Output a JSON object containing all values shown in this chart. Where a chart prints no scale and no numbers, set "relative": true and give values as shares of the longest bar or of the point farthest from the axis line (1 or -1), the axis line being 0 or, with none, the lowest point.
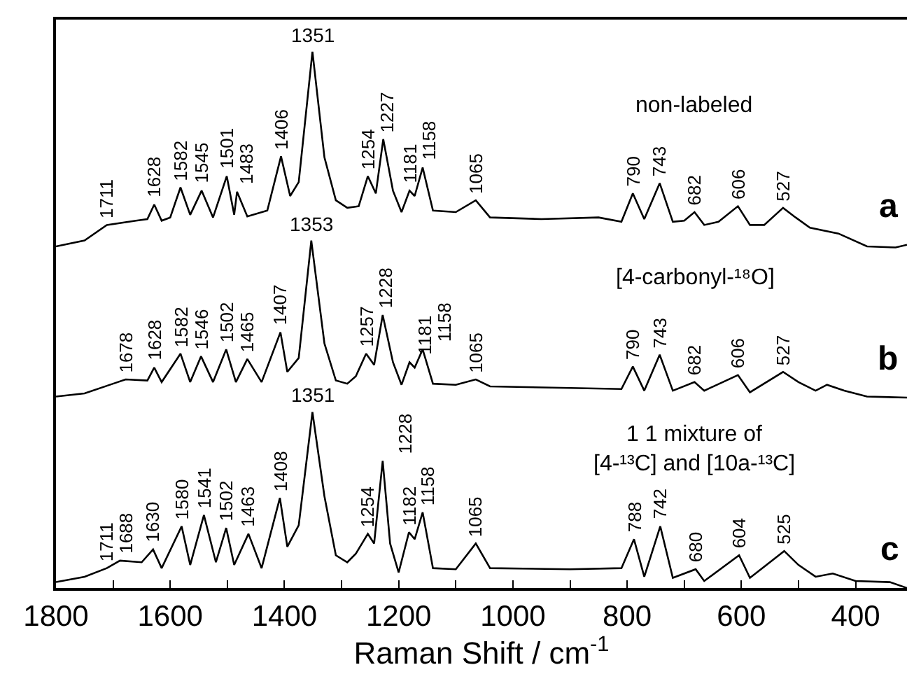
{
  "chart_data": {
    "type": "line",
    "relative": true,
    "xlabel": "Raman Shift / cm$^{-1}$",
    "xlim": [
      1800,
      310
    ],
    "xticks": [
      1800,
      {
        "value": 1700,
        "label": null
      },
      1600,
      {
        "value": 1500,
        "label": null
      },
      1400,
      {
        "value": 1300,
        "label": null
      },
      1200,
      {
        "value": 1100,
        "label": null
      },
      1000,
      {
        "value": 900,
        "label": null
      },
      800,
      {
        "value": 700,
        "label": null
      },
      600,
      {
        "value": 500,
        "label": null
      },
      400
    ],
    "grid": false,
    "legend": false,
    "marker": "none",
    "line_style": "solid",
    "series": [
      {
        "name": "a",
        "color": "#000000",
        "x": [
          1800,
          1750,
          1711,
          1660,
          1640,
          1628,
          1615,
          1600,
          1582,
          1565,
          1545,
          1525,
          1501,
          1488,
          1483,
          1465,
          1430,
          1406,
          1390,
          1375,
          1351,
          1330,
          1310,
          1290,
          1270,
          1254,
          1240,
          1227,
          1210,
          1195,
          1181,
          1172,
          1158,
          1140,
          1100,
          1065,
          1040,
          950,
          850,
          810,
          790,
          770,
          743,
          720,
          700,
          682,
          665,
          640,
          606,
          585,
          560,
          527,
          505,
          480,
          430,
          380,
          330,
          310
        ],
        "values": [
          0.637,
          0.648,
          0.677,
          0.685,
          0.688,
          0.715,
          0.685,
          0.691,
          0.747,
          0.696,
          0.741,
          0.691,
          0.768,
          0.696,
          0.739,
          0.693,
          0.704,
          0.805,
          0.731,
          0.757,
          1.0,
          0.803,
          0.723,
          0.709,
          0.712,
          0.768,
          0.736,
          0.837,
          0.741,
          0.701,
          0.741,
          0.731,
          0.784,
          0.704,
          0.701,
          0.723,
          0.691,
          0.688,
          0.691,
          0.683,
          0.736,
          0.688,
          0.755,
          0.683,
          0.685,
          0.701,
          0.677,
          0.683,
          0.712,
          0.677,
          0.677,
          0.709,
          0.691,
          0.672,
          0.661,
          0.637,
          0.635,
          0.64
        ]
      },
      {
        "name": "b",
        "color": "#000000",
        "x": [
          1800,
          1750,
          1700,
          1678,
          1640,
          1628,
          1615,
          1582,
          1565,
          1546,
          1525,
          1502,
          1485,
          1465,
          1440,
          1407,
          1395,
          1375,
          1353,
          1330,
          1310,
          1290,
          1275,
          1257,
          1243,
          1228,
          1210,
          1195,
          1181,
          1172,
          1158,
          1140,
          1100,
          1065,
          1040,
          900,
          810,
          790,
          770,
          743,
          720,
          682,
          665,
          606,
          585,
          527,
          500,
          470,
          450,
          420,
          380,
          310
        ],
        "values": [
          0.357,
          0.363,
          0.381,
          0.389,
          0.387,
          0.411,
          0.384,
          0.437,
          0.384,
          0.432,
          0.384,
          0.445,
          0.384,
          0.427,
          0.384,
          0.477,
          0.403,
          0.429,
          0.648,
          0.456,
          0.387,
          0.381,
          0.395,
          0.437,
          0.416,
          0.509,
          0.421,
          0.379,
          0.421,
          0.411,
          0.445,
          0.381,
          0.379,
          0.389,
          0.376,
          0.373,
          0.371,
          0.413,
          0.368,
          0.435,
          0.368,
          0.384,
          0.368,
          0.397,
          0.365,
          0.403,
          0.384,
          0.368,
          0.379,
          0.368,
          0.357,
          0.355
        ]
      },
      {
        "name": "c",
        "color": "#000000",
        "x": [
          1800,
          1750,
          1711,
          1688,
          1650,
          1630,
          1615,
          1580,
          1565,
          1541,
          1520,
          1502,
          1488,
          1463,
          1440,
          1408,
          1395,
          1375,
          1351,
          1330,
          1310,
          1290,
          1275,
          1254,
          1243,
          1228,
          1215,
          1200,
          1182,
          1172,
          1158,
          1140,
          1100,
          1065,
          1040,
          900,
          810,
          788,
          770,
          742,
          720,
          680,
          665,
          604,
          585,
          525,
          500,
          470,
          440,
          400,
          340,
          310
        ],
        "values": [
          0.011,
          0.021,
          0.037,
          0.051,
          0.048,
          0.072,
          0.037,
          0.115,
          0.043,
          0.136,
          0.048,
          0.112,
          0.043,
          0.101,
          0.037,
          0.168,
          0.077,
          0.117,
          0.328,
          0.171,
          0.061,
          0.048,
          0.064,
          0.101,
          0.083,
          0.237,
          0.083,
          0.029,
          0.104,
          0.091,
          0.141,
          0.037,
          0.035,
          0.083,
          0.037,
          0.035,
          0.037,
          0.091,
          0.021,
          0.115,
          0.019,
          0.035,
          0.013,
          0.061,
          0.019,
          0.069,
          0.043,
          0.021,
          0.027,
          0.013,
          0.011,
          0.0
        ]
      }
    ],
    "annotations": [
      "non-labeled",
      "[4-carbonyl-¹⁸O]",
      "1 1 mixture of\n[4-¹³C] and [10a-¹³C]",
      {
        "text": "1711",
        "x": 1711,
        "y": 0.677
      },
      {
        "text": "1628",
        "x": 1628,
        "y": 0.715
      },
      {
        "text": "1582",
        "x": 1582,
        "y": 0.747
      },
      {
        "text": "1545",
        "x": 1545,
        "y": 0.741
      },
      {
        "text": "1501",
        "x": 1501,
        "y": 0.768
      },
      {
        "text": "1483",
        "x": 1483,
        "y": 0.739
      },
      {
        "text": "1406",
        "x": 1406,
        "y": 0.805
      },
      {
        "text": "1351",
        "x": 1351,
        "y": 1.0
      },
      {
        "text": "1254",
        "x": 1254,
        "y": 0.768
      },
      {
        "text": "1227",
        "x": 1227,
        "y": 0.837
      },
      {
        "text": "1181",
        "x": 1181,
        "y": 0.741
      },
      {
        "text": "1158",
        "x": 1158,
        "y": 0.784
      },
      {
        "text": "1065",
        "x": 1065,
        "y": 0.723
      },
      {
        "text": "790",
        "x": 790,
        "y": 0.736
      },
      {
        "text": "743",
        "x": 743,
        "y": 0.755
      },
      {
        "text": "682",
        "x": 682,
        "y": 0.701
      },
      {
        "text": "606",
        "x": 606,
        "y": 0.712
      },
      {
        "text": "527",
        "x": 527,
        "y": 0.709
      },
      {
        "text": "1678",
        "x": 1678,
        "y": 0.389
      },
      {
        "text": "1628",
        "x": 1628,
        "y": 0.411
      },
      {
        "text": "1582",
        "x": 1582,
        "y": 0.437
      },
      {
        "text": "1546",
        "x": 1546,
        "y": 0.432
      },
      {
        "text": "1502",
        "x": 1502,
        "y": 0.445
      },
      {
        "text": "1465",
        "x": 1465,
        "y": 0.427
      },
      {
        "text": "1407",
        "x": 1407,
        "y": 0.477
      },
      {
        "text": "1353",
        "x": 1353,
        "y": 0.648
      },
      {
        "text": "1257",
        "x": 1257,
        "y": 0.437
      },
      {
        "text": "1228",
        "x": 1228,
        "y": 0.509
      },
      {
        "text": "1181",
        "x": 1181,
        "y": 0.421
      },
      {
        "text": "1158",
        "x": 1158,
        "y": 0.445
      },
      {
        "text": "1065",
        "x": 1065,
        "y": 0.389
      },
      {
        "text": "790",
        "x": 790,
        "y": 0.413
      },
      {
        "text": "743",
        "x": 743,
        "y": 0.435
      },
      {
        "text": "682",
        "x": 682,
        "y": 0.384
      },
      {
        "text": "606",
        "x": 606,
        "y": 0.397
      },
      {
        "text": "527",
        "x": 527,
        "y": 0.403
      },
      {
        "text": "1711",
        "x": 1711,
        "y": 0.037
      },
      {
        "text": "1688",
        "x": 1688,
        "y": 0.051
      },
      {
        "text": "1630",
        "x": 1630,
        "y": 0.072
      },
      {
        "text": "1580",
        "x": 1580,
        "y": 0.115
      },
      {
        "text": "1541",
        "x": 1541,
        "y": 0.136
      },
      {
        "text": "1502",
        "x": 1502,
        "y": 0.112
      },
      {
        "text": "1463",
        "x": 1463,
        "y": 0.101
      },
      {
        "text": "1408",
        "x": 1408,
        "y": 0.168
      },
      {
        "text": "1351",
        "x": 1351,
        "y": 0.328
      },
      {
        "text": "1254",
        "x": 1254,
        "y": 0.101
      },
      {
        "text": "1228",
        "x": 1228,
        "y": 0.237
      },
      {
        "text": "1182",
        "x": 1182,
        "y": 0.104
      },
      {
        "text": "1158",
        "x": 1158,
        "y": 0.141
      },
      {
        "text": "1065",
        "x": 1065,
        "y": 0.083
      },
      {
        "text": "788",
        "x": 788,
        "y": 0.091
      },
      {
        "text": "742",
        "x": 742,
        "y": 0.115
      },
      {
        "text": "680",
        "x": 680,
        "y": 0.035
      },
      {
        "text": "604",
        "x": 604,
        "y": 0.061
      },
      {
        "text": "525",
        "x": 525,
        "y": 0.069
      }
    ]
  }
}
